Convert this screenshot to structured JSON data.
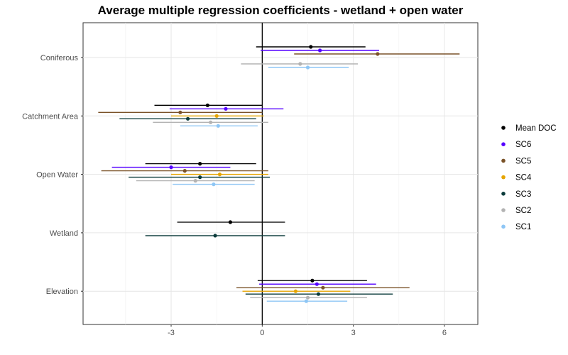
{
  "chart_data": {
    "type": "dot-and-whisker",
    "title": "Average multiple regression coefficients - wetland + open water",
    "xlabel": "",
    "ylabel": "",
    "xlim": [
      -5.9,
      7.1
    ],
    "xticks": [
      -3,
      0,
      3,
      6
    ],
    "tick_labels": [
      "-3",
      "0",
      "3",
      "6"
    ],
    "reference_line_x": 0,
    "grid": true,
    "legend_position": "right",
    "categories": [
      "Coniferous",
      "Catchment Area",
      "Open Water",
      "Wetland",
      "Elevation"
    ],
    "series": [
      {
        "name": "Mean DOC",
        "color": "#000000",
        "points": [
          {
            "category": "Coniferous",
            "estimate": 1.6,
            "lower": -0.2,
            "upper": 3.4
          },
          {
            "category": "Catchment Area",
            "estimate": -1.8,
            "lower": -3.55,
            "upper": 0.0
          },
          {
            "category": "Open Water",
            "estimate": -2.05,
            "lower": -3.85,
            "upper": -0.2
          },
          {
            "category": "Wetland",
            "estimate": -1.05,
            "lower": -2.8,
            "upper": 0.75
          },
          {
            "category": "Elevation",
            "estimate": 1.65,
            "lower": -0.15,
            "upper": 3.45
          }
        ]
      },
      {
        "name": "SC6",
        "color": "#5500ff",
        "points": [
          {
            "category": "Coniferous",
            "estimate": 1.9,
            "lower": -0.05,
            "upper": 3.85
          },
          {
            "category": "Catchment Area",
            "estimate": -1.2,
            "lower": -3.05,
            "upper": 0.7
          },
          {
            "category": "Open Water",
            "estimate": -3.0,
            "lower": -4.95,
            "upper": -1.05
          },
          {
            "category": "Elevation",
            "estimate": 1.8,
            "lower": -0.1,
            "upper": 3.75
          }
        ]
      },
      {
        "name": "SC5",
        "color": "#7a5228",
        "points": [
          {
            "category": "Coniferous",
            "estimate": 3.8,
            "lower": 1.05,
            "upper": 6.5
          },
          {
            "category": "Catchment Area",
            "estimate": -2.7,
            "lower": -5.4,
            "upper": 0.0
          },
          {
            "category": "Open Water",
            "estimate": -2.55,
            "lower": -5.3,
            "upper": 0.2
          },
          {
            "category": "Elevation",
            "estimate": 2.0,
            "lower": -0.85,
            "upper": 4.85
          }
        ]
      },
      {
        "name": "SC4",
        "color": "#e6a500",
        "points": [
          {
            "category": "Catchment Area",
            "estimate": -1.5,
            "lower": -3.0,
            "upper": 0.05
          },
          {
            "category": "Open Water",
            "estimate": -1.4,
            "lower": -3.0,
            "upper": 0.2
          },
          {
            "category": "Elevation",
            "estimate": 1.1,
            "lower": -0.65,
            "upper": 2.9
          }
        ]
      },
      {
        "name": "SC3",
        "color": "#0b3b3b",
        "points": [
          {
            "category": "Catchment Area",
            "estimate": -2.45,
            "lower": -4.7,
            "upper": -0.2
          },
          {
            "category": "Open Water",
            "estimate": -2.05,
            "lower": -4.4,
            "upper": 0.25
          },
          {
            "category": "Wetland",
            "estimate": -1.55,
            "lower": -3.85,
            "upper": 0.75
          },
          {
            "category": "Elevation",
            "estimate": 1.85,
            "lower": -0.55,
            "upper": 4.3
          }
        ]
      },
      {
        "name": "SC2",
        "color": "#b3b3b3",
        "points": [
          {
            "category": "Coniferous",
            "estimate": 1.25,
            "lower": -0.7,
            "upper": 3.15
          },
          {
            "category": "Catchment Area",
            "estimate": -1.7,
            "lower": -3.6,
            "upper": 0.2
          },
          {
            "category": "Open Water",
            "estimate": -2.2,
            "lower": -4.15,
            "upper": -0.25
          },
          {
            "category": "Elevation",
            "estimate": 1.5,
            "lower": -0.4,
            "upper": 3.45
          }
        ]
      },
      {
        "name": "SC1",
        "color": "#8ec6f5",
        "points": [
          {
            "category": "Coniferous",
            "estimate": 1.5,
            "lower": 0.2,
            "upper": 2.85
          },
          {
            "category": "Catchment Area",
            "estimate": -1.45,
            "lower": -2.7,
            "upper": -0.15
          },
          {
            "category": "Open Water",
            "estimate": -1.6,
            "lower": -2.95,
            "upper": -0.25
          },
          {
            "category": "Elevation",
            "estimate": 1.45,
            "lower": 0.15,
            "upper": 2.8
          }
        ]
      }
    ]
  }
}
